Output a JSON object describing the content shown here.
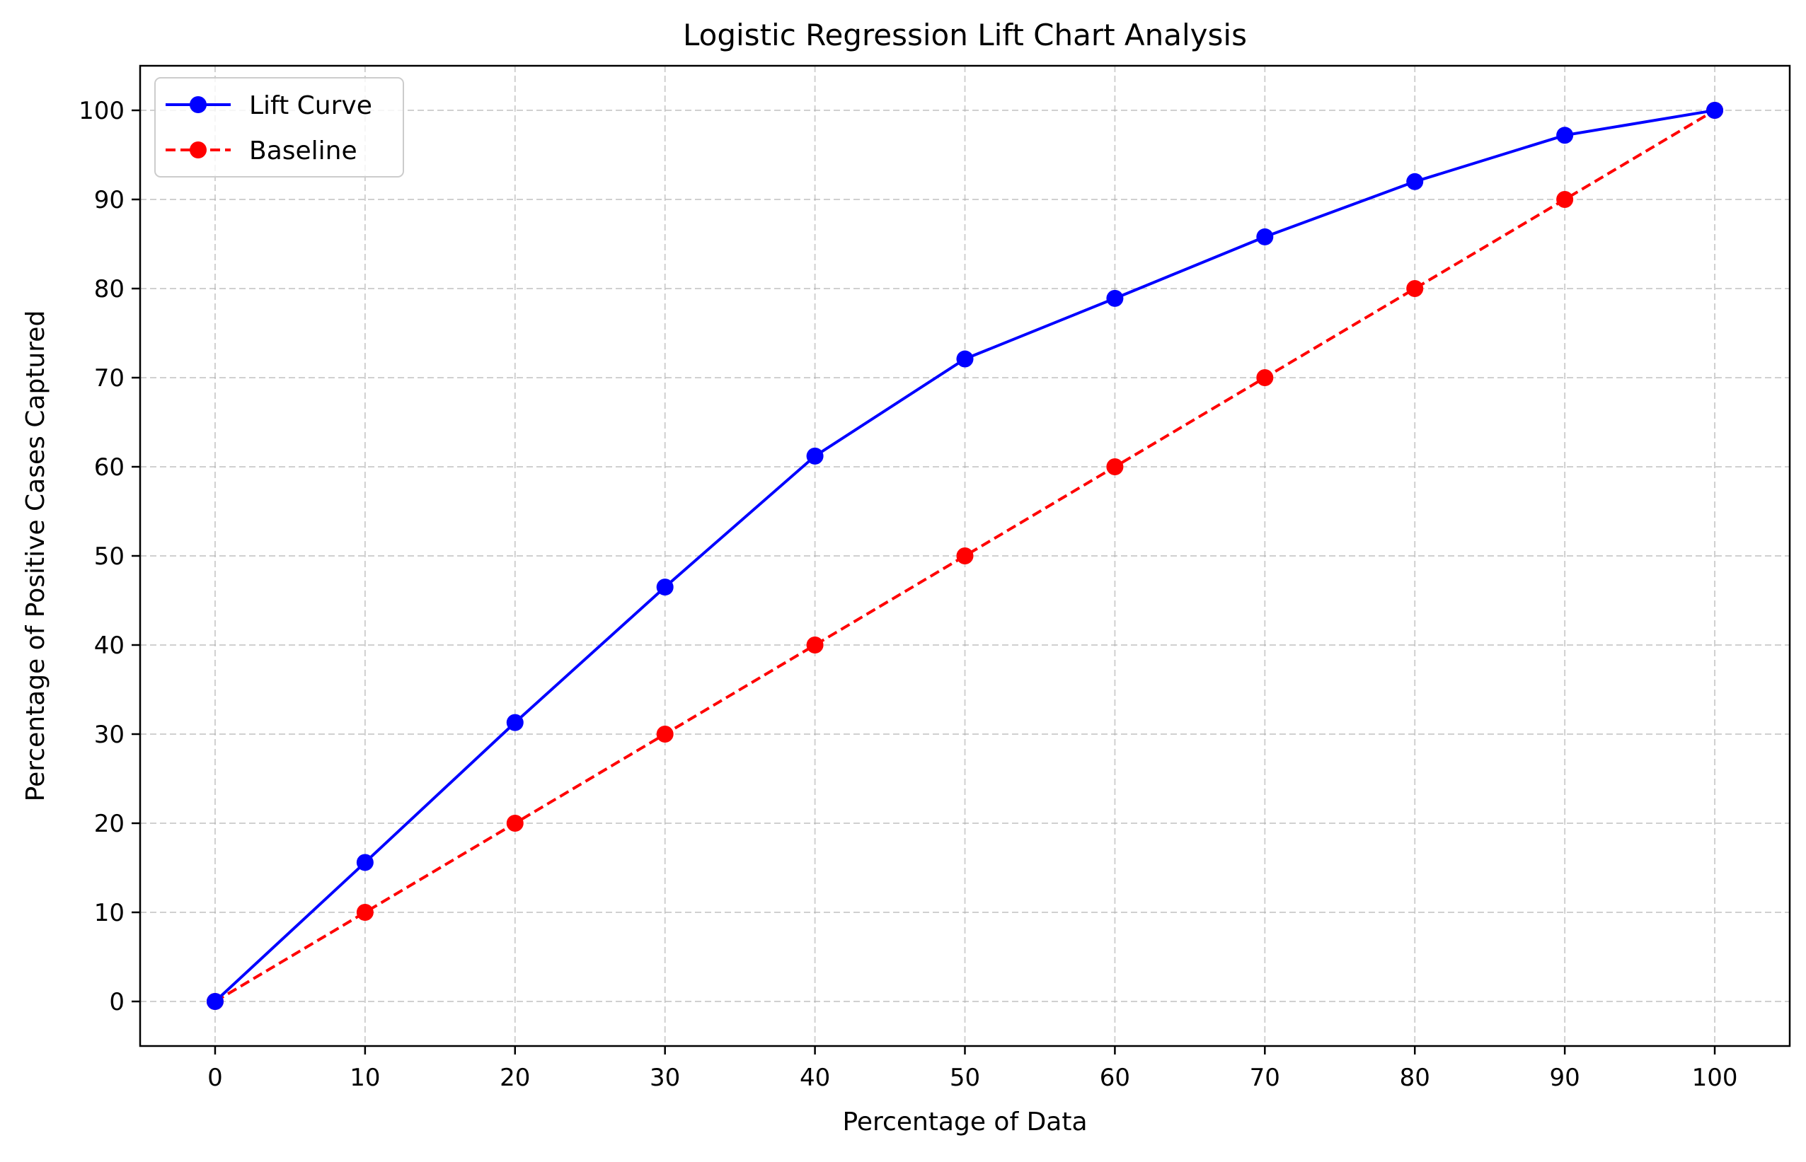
{
  "chart_data": {
    "type": "line",
    "title": "Logistic Regression Lift Chart Analysis",
    "xlabel": "Percentage of Data",
    "ylabel": "Percentage of Positive Cases Captured",
    "xlim": [
      -5,
      105
    ],
    "ylim": [
      -5,
      105
    ],
    "xticks": [
      0,
      10,
      20,
      30,
      40,
      50,
      60,
      70,
      80,
      90,
      100
    ],
    "yticks": [
      0,
      10,
      20,
      30,
      40,
      50,
      60,
      70,
      80,
      90,
      100
    ],
    "grid": true,
    "legend_position": "top-left",
    "x": [
      0,
      10,
      20,
      30,
      40,
      50,
      60,
      70,
      80,
      90,
      100
    ],
    "series": [
      {
        "name": "Lift Curve",
        "color": "#0000ff",
        "line_style": "solid",
        "marker": "circle",
        "values": [
          0,
          15.6,
          31.3,
          46.5,
          61.2,
          72.1,
          78.9,
          85.8,
          92.0,
          97.2,
          100
        ]
      },
      {
        "name": "Baseline",
        "color": "#ff0000",
        "line_style": "dashed",
        "marker": "circle",
        "values": [
          0,
          10,
          20,
          30,
          40,
          50,
          60,
          70,
          80,
          90,
          100
        ]
      }
    ]
  }
}
